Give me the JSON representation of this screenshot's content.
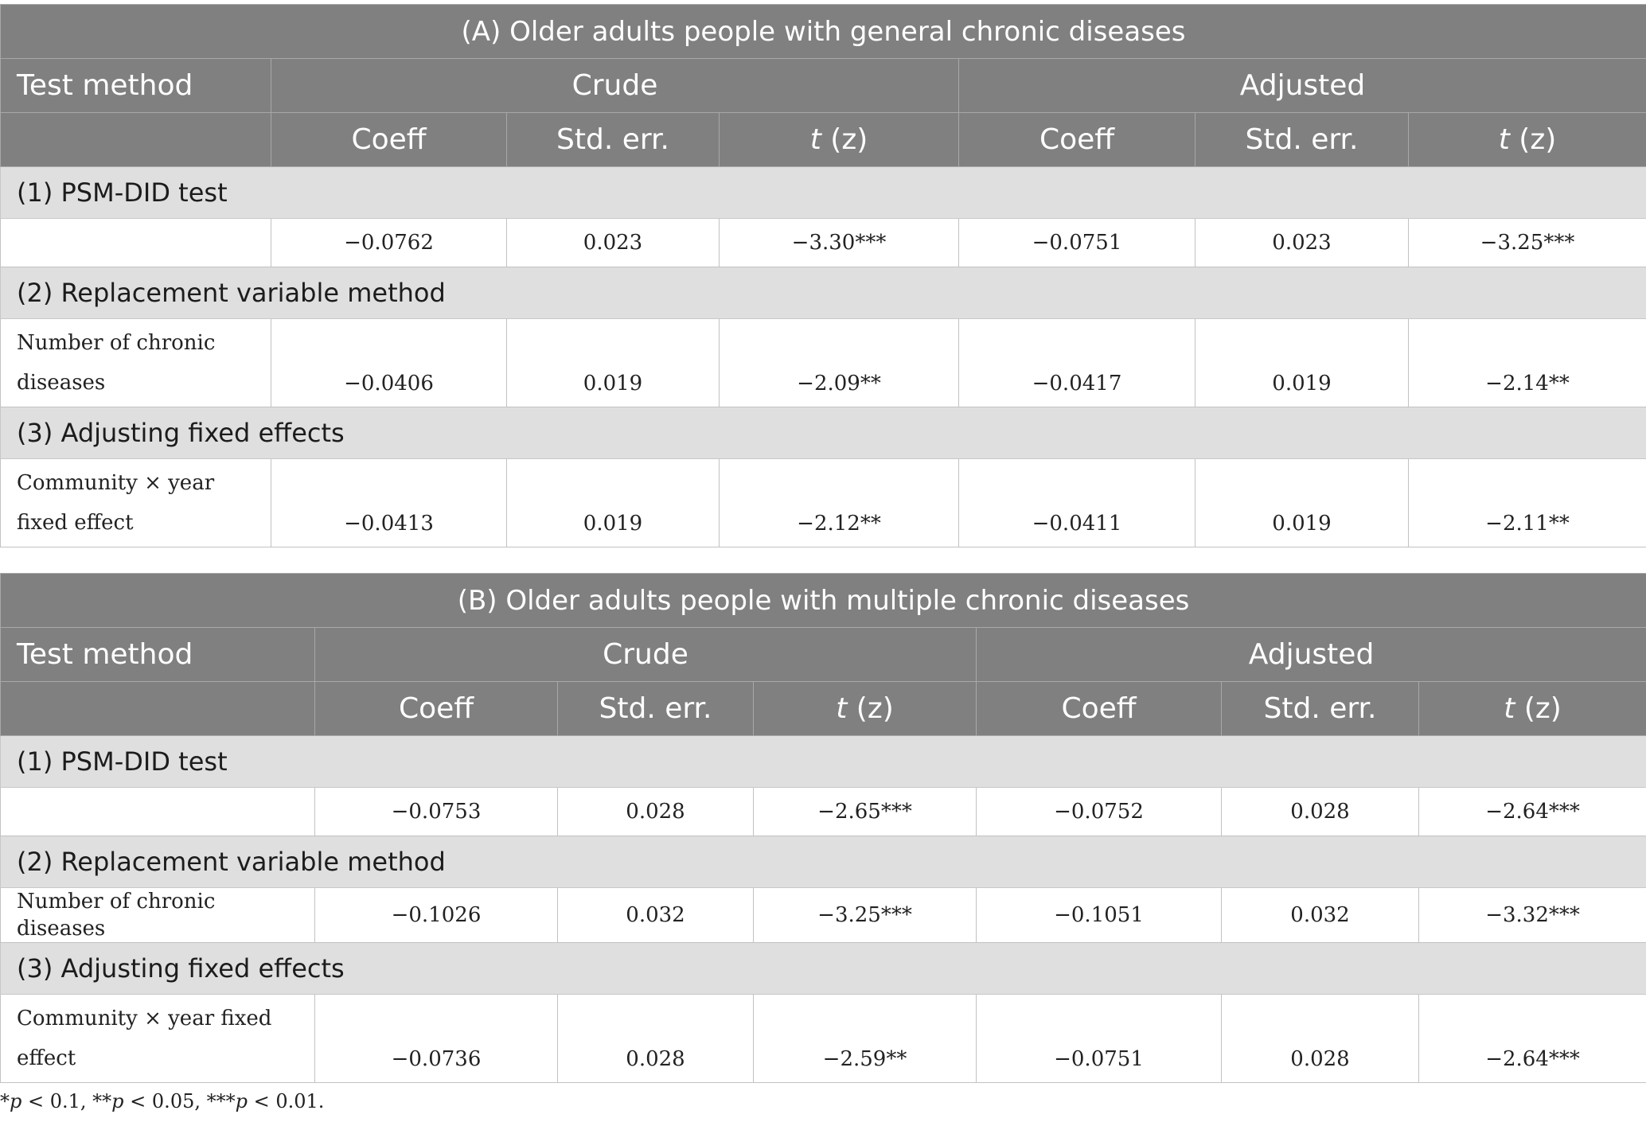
{
  "panels": [
    {
      "title": "(A) Older adults people with general chronic diseases",
      "header": {
        "test_method": "Test method",
        "crude": "Crude",
        "adjusted": "Adjusted",
        "coeff": "Coeff",
        "std_err": "Std. err.",
        "t_prefix": "t",
        "t_suffix": "(z)"
      },
      "sections": [
        {
          "label": "(1) PSM-DID test",
          "row_label": "",
          "values": [
            "−0.0762",
            "0.023",
            "−3.30***",
            "−0.0751",
            "0.023",
            "−3.25***"
          ]
        },
        {
          "label": "(2) Replacement variable method",
          "row_label": "Number of chronic diseases",
          "values": [
            "−0.0406",
            "0.019",
            "−2.09**",
            "−0.0417",
            "0.019",
            "−2.14**"
          ]
        },
        {
          "label": "(3) Adjusting fixed effects",
          "row_label": "Community × year fixed effect",
          "values": [
            "−0.0413",
            "0.019",
            "−2.12**",
            "−0.0411",
            "0.019",
            "−2.11**"
          ]
        }
      ]
    },
    {
      "title": "(B) Older adults people with multiple chronic diseases",
      "header": {
        "test_method": "Test method",
        "crude": "Crude",
        "adjusted": "Adjusted",
        "coeff": "Coeff",
        "std_err": "Std. err.",
        "t_prefix": "t",
        "t_suffix": "(z)"
      },
      "sections": [
        {
          "label": "(1) PSM-DID test",
          "row_label": "",
          "values": [
            "−0.0753",
            "0.028",
            "−2.65***",
            "−0.0752",
            "0.028",
            "−2.64***"
          ]
        },
        {
          "label": "(2) Replacement variable method",
          "row_label": "Number of chronic diseases",
          "values": [
            "−0.1026",
            "0.032",
            "−3.25***",
            "−0.1051",
            "0.032",
            "−3.32***"
          ]
        },
        {
          "label": "(3) Adjusting fixed effects",
          "row_label": "Community × year fixed effect",
          "values": [
            "−0.0736",
            "0.028",
            "−2.59**",
            "−0.0751",
            "0.028",
            "−2.64***"
          ]
        }
      ]
    }
  ],
  "footnote": {
    "s1": "*",
    "p1": "p",
    "t1": " < 0.1, **",
    "p2": "p",
    "t2": " < 0.05, ***",
    "p3": "p",
    "t3": " < 0.01."
  }
}
